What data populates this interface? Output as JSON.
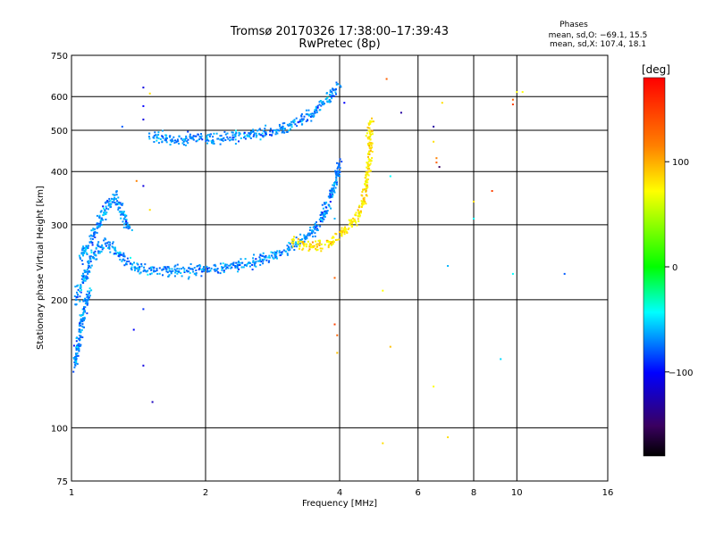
{
  "chart_data": {
    "type": "scatter",
    "title": "Tromsø 20170326 17:38:00–17:39:43",
    "subtitle": "RwPretec (8p)",
    "xlabel": "Frequency [MHz]",
    "ylabel": "Stationary phase Virtual Height [km]",
    "x_scale": "log",
    "y_scale": "log",
    "xlim": [
      1,
      16
    ],
    "ylim": [
      75,
      750
    ],
    "xticks": [
      1,
      2,
      4,
      6,
      8,
      10,
      16
    ],
    "yticks": [
      75,
      100,
      200,
      300,
      400,
      500,
      600,
      750
    ],
    "grid": true,
    "stats": {
      "title": "Phases",
      "o_line": "mean, sd,O: −69.1, 15.5",
      "x_line": "mean, sd,X: 107.4, 18.1"
    },
    "colorbar": {
      "label": "[deg]",
      "ticks": [
        100,
        0,
        -100
      ],
      "range": [
        -180,
        180
      ]
    },
    "series": [
      {
        "name": "O",
        "phase_mean": -69.1,
        "phase_sd": 15.5,
        "traces": [
          {
            "x": [
              1.02,
              1.05,
              1.08,
              1.1,
              1.12,
              1.15,
              1.18,
              1.2,
              1.22,
              1.25,
              1.28,
              1.3,
              1.32,
              1.35,
              1.38,
              1.4,
              1.45,
              1.5,
              1.6,
              1.7,
              1.8,
              1.9,
              2.0,
              2.2,
              2.4,
              2.6,
              2.8,
              3.0,
              3.2,
              3.4,
              3.5,
              3.6,
              3.7,
              3.8,
              3.85,
              3.9,
              3.95,
              4.0
            ],
            "y": [
              200,
              215,
              230,
              245,
              255,
              262,
              268,
              270,
              268,
              262,
              255,
              250,
              246,
              243,
              240,
              238,
              236,
              235,
              234,
              234,
              234,
              234,
              235,
              237,
              241,
              246,
              252,
              260,
              270,
              284,
              292,
              304,
              318,
              340,
              356,
              374,
              396,
              420
            ]
          },
          {
            "x": [
              1.05,
              1.1,
              1.15,
              1.2,
              1.25,
              1.3,
              1.35
            ],
            "y": [
              250,
              275,
              300,
              330,
              350,
              320,
              290
            ]
          },
          {
            "x": [
              1.02,
              1.03,
              1.04,
              1.05,
              1.06,
              1.07,
              1.08,
              1.1
            ],
            "y": [
              140,
              150,
              160,
              170,
              180,
              190,
              200,
              210
            ]
          },
          {
            "x": [
              1.5,
              1.6,
              1.7,
              1.8,
              2.0,
              2.2,
              2.4,
              2.6,
              2.8,
              3.0,
              3.2,
              3.4,
              3.6,
              3.8,
              4.0
            ],
            "y": [
              480,
              478,
              476,
              476,
              477,
              480,
              484,
              490,
              497,
              505,
              520,
              540,
              565,
              600,
              640
            ]
          }
        ]
      },
      {
        "name": "X",
        "phase_mean": 107.4,
        "phase_sd": 18.1,
        "traces": [
          {
            "x": [
              3.1,
              3.3,
              3.5,
              3.7,
              3.9,
              4.1,
              4.3,
              4.45,
              4.55,
              4.6,
              4.65,
              4.68,
              4.7
            ],
            "y": [
              275,
              270,
              266,
              268,
              278,
              290,
              305,
              325,
              350,
              380,
              420,
              470,
              520
            ]
          }
        ]
      }
    ],
    "outliers": [
      {
        "x": 1.45,
        "y": 630,
        "phase": -110
      },
      {
        "x": 1.45,
        "y": 570,
        "phase": -100
      },
      {
        "x": 1.45,
        "y": 530,
        "phase": -110
      },
      {
        "x": 1.45,
        "y": 370,
        "phase": -110
      },
      {
        "x": 1.45,
        "y": 190,
        "phase": -90
      },
      {
        "x": 1.45,
        "y": 140,
        "phase": -110
      },
      {
        "x": 1.5,
        "y": 610,
        "phase": 110
      },
      {
        "x": 1.5,
        "y": 325,
        "phase": 110
      },
      {
        "x": 1.3,
        "y": 510,
        "phase": -80
      },
      {
        "x": 1.4,
        "y": 380,
        "phase": 140
      },
      {
        "x": 1.52,
        "y": 115,
        "phase": -120
      },
      {
        "x": 1.38,
        "y": 170,
        "phase": -100
      },
      {
        "x": 3.9,
        "y": 310,
        "phase": -60
      },
      {
        "x": 3.9,
        "y": 225,
        "phase": 150
      },
      {
        "x": 3.9,
        "y": 175,
        "phase": 160
      },
      {
        "x": 3.95,
        "y": 165,
        "phase": 150
      },
      {
        "x": 3.95,
        "y": 150,
        "phase": 120
      },
      {
        "x": 4.1,
        "y": 580,
        "phase": -100
      },
      {
        "x": 5.0,
        "y": 210,
        "phase": 100
      },
      {
        "x": 5.0,
        "y": 92,
        "phase": 110
      },
      {
        "x": 5.1,
        "y": 660,
        "phase": 150
      },
      {
        "x": 5.2,
        "y": 390,
        "phase": -40
      },
      {
        "x": 5.2,
        "y": 155,
        "phase": 120
      },
      {
        "x": 5.5,
        "y": 550,
        "phase": -130
      },
      {
        "x": 6.5,
        "y": 510,
        "phase": -130
      },
      {
        "x": 6.5,
        "y": 470,
        "phase": 110
      },
      {
        "x": 6.6,
        "y": 430,
        "phase": 140
      },
      {
        "x": 6.6,
        "y": 420,
        "phase": 150
      },
      {
        "x": 6.5,
        "y": 125,
        "phase": 100
      },
      {
        "x": 6.8,
        "y": 580,
        "phase": 110
      },
      {
        "x": 6.7,
        "y": 410,
        "phase": -150
      },
      {
        "x": 7.0,
        "y": 240,
        "phase": -60
      },
      {
        "x": 7.0,
        "y": 95,
        "phase": 110
      },
      {
        "x": 8.0,
        "y": 340,
        "phase": 110
      },
      {
        "x": 8.0,
        "y": 310,
        "phase": -40
      },
      {
        "x": 8.8,
        "y": 360,
        "phase": 160
      },
      {
        "x": 9.2,
        "y": 145,
        "phase": -50
      },
      {
        "x": 9.8,
        "y": 590,
        "phase": 150
      },
      {
        "x": 9.8,
        "y": 575,
        "phase": 160
      },
      {
        "x": 9.8,
        "y": 230,
        "phase": -40
      },
      {
        "x": 10.0,
        "y": 615,
        "phase": 100
      },
      {
        "x": 10.3,
        "y": 615,
        "phase": 100
      },
      {
        "x": 12.8,
        "y": 230,
        "phase": -80
      }
    ]
  }
}
